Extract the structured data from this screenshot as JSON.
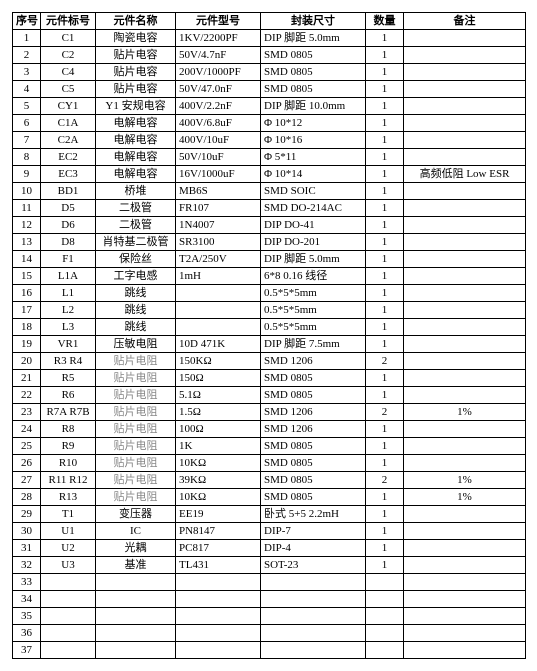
{
  "columns": [
    "序号",
    "元件标号",
    "元件名称",
    "元件型号",
    "封装尺寸",
    "数量",
    "备注"
  ],
  "col_classes": [
    "col-idx",
    "col-ref",
    "col-name",
    "col-model",
    "col-pkg",
    "col-qty",
    "col-note"
  ],
  "name_grey_text": "贴片电阻",
  "rows": [
    {
      "idx": "1",
      "ref": "C1",
      "name": "陶瓷电容",
      "model": "1KV/2200PF",
      "pkg": "DIP 脚距 5.0mm",
      "qty": "1",
      "note": ""
    },
    {
      "idx": "2",
      "ref": "C2",
      "name": "贴片电容",
      "model": "50V/4.7nF",
      "pkg": "SMD 0805",
      "qty": "1",
      "note": ""
    },
    {
      "idx": "3",
      "ref": "C4",
      "name": "贴片电容",
      "model": "200V/1000PF",
      "pkg": "SMD 0805",
      "qty": "1",
      "note": ""
    },
    {
      "idx": "4",
      "ref": "C5",
      "name": "贴片电容",
      "model": "50V/47.0nF",
      "pkg": "SMD 0805",
      "qty": "1",
      "note": ""
    },
    {
      "idx": "5",
      "ref": "CY1",
      "name": "Y1 安规电容",
      "model": "400V/2.2nF",
      "pkg": "DIP 脚距 10.0mm",
      "qty": "1",
      "note": ""
    },
    {
      "idx": "6",
      "ref": "C1A",
      "name": "电解电容",
      "model": "400V/6.8uF",
      "pkg": "Φ 10*12",
      "qty": "1",
      "note": ""
    },
    {
      "idx": "7",
      "ref": "C2A",
      "name": "电解电容",
      "model": "400V/10uF",
      "pkg": "Φ 10*16",
      "qty": "1",
      "note": ""
    },
    {
      "idx": "8",
      "ref": "EC2",
      "name": "电解电容",
      "model": "50V/10uF",
      "pkg": "Φ 5*11",
      "qty": "1",
      "note": ""
    },
    {
      "idx": "9",
      "ref": "EC3",
      "name": "电解电容",
      "model": "16V/1000uF",
      "pkg": "Φ 10*14",
      "qty": "1",
      "note": "高频低阻 Low ESR"
    },
    {
      "idx": "10",
      "ref": "BD1",
      "name": "桥堆",
      "model": "MB6S",
      "pkg": "SMD   SOIC",
      "qty": "1",
      "note": ""
    },
    {
      "idx": "11",
      "ref": "D5",
      "name": "二极管",
      "model": "FR107",
      "pkg": "SMD DO-214AC",
      "qty": "1",
      "note": ""
    },
    {
      "idx": "12",
      "ref": "D6",
      "name": "二极管",
      "model": "1N4007",
      "pkg": "DIP DO-41",
      "qty": "1",
      "note": ""
    },
    {
      "idx": "13",
      "ref": "D8",
      "name": "肖特基二极管",
      "model": "SR3100",
      "pkg": "DIP DO-201",
      "qty": "1",
      "note": ""
    },
    {
      "idx": "14",
      "ref": "F1",
      "name": "保险丝",
      "model": "T2A/250V",
      "pkg": "DIP 脚距 5.0mm",
      "qty": "1",
      "note": ""
    },
    {
      "idx": "15",
      "ref": "L1A",
      "name": "工字电感",
      "model": "1mH",
      "pkg": "6*8   0.16 线径",
      "qty": "1",
      "note": ""
    },
    {
      "idx": "16",
      "ref": "L1",
      "name": "跳线",
      "model": "",
      "pkg": "0.5*5*5mm",
      "qty": "1",
      "note": ""
    },
    {
      "idx": "17",
      "ref": "L2",
      "name": "跳线",
      "model": "",
      "pkg": "0.5*5*5mm",
      "qty": "1",
      "note": ""
    },
    {
      "idx": "18",
      "ref": "L3",
      "name": "跳线",
      "model": "",
      "pkg": "0.5*5*5mm",
      "qty": "1",
      "note": ""
    },
    {
      "idx": "19",
      "ref": "VR1",
      "name": "压敏电阻",
      "model": "10D 471K",
      "pkg": "DIP 脚距 7.5mm",
      "qty": "1",
      "note": ""
    },
    {
      "idx": "20",
      "ref": "R3 R4",
      "name": "贴片电阻",
      "model": "150KΩ",
      "pkg": "SMD 1206",
      "qty": "2",
      "note": ""
    },
    {
      "idx": "21",
      "ref": "R5",
      "name": "贴片电阻",
      "model": "150Ω",
      "pkg": "SMD 0805",
      "qty": "1",
      "note": ""
    },
    {
      "idx": "22",
      "ref": "R6",
      "name": "贴片电阻",
      "model": "5.1Ω",
      "pkg": "SMD 0805",
      "qty": "1",
      "note": ""
    },
    {
      "idx": "23",
      "ref": "R7A R7B",
      "name": "贴片电阻",
      "model": "1.5Ω",
      "pkg": "SMD 1206",
      "qty": "2",
      "note": "1%"
    },
    {
      "idx": "24",
      "ref": "R8",
      "name": "贴片电阻",
      "model": "100Ω",
      "pkg": "SMD 1206",
      "qty": "1",
      "note": ""
    },
    {
      "idx": "25",
      "ref": "R9",
      "name": "贴片电阻",
      "model": "1K",
      "pkg": "SMD 0805",
      "qty": "1",
      "note": ""
    },
    {
      "idx": "26",
      "ref": "R10",
      "name": "贴片电阻",
      "model": "10KΩ",
      "pkg": "SMD 0805",
      "qty": "1",
      "note": ""
    },
    {
      "idx": "27",
      "ref": "R11 R12",
      "name": "贴片电阻",
      "model": "39KΩ",
      "pkg": "SMD 0805",
      "qty": "2",
      "note": "1%"
    },
    {
      "idx": "28",
      "ref": "R13",
      "name": "贴片电阻",
      "model": "10KΩ",
      "pkg": "SMD 0805",
      "qty": "1",
      "note": "1%"
    },
    {
      "idx": "29",
      "ref": "T1",
      "name": "变压器",
      "model": "EE19",
      "pkg": "卧式  5+5 2.2mH",
      "qty": "1",
      "note": ""
    },
    {
      "idx": "30",
      "ref": "U1",
      "name": "IC",
      "model": "PN8147",
      "pkg": "DIP-7",
      "qty": "1",
      "note": ""
    },
    {
      "idx": "31",
      "ref": "U2",
      "name": "光耦",
      "model": "PC817",
      "pkg": "DIP-4",
      "qty": "1",
      "note": ""
    },
    {
      "idx": "32",
      "ref": "U3",
      "name": "基准",
      "model": "TL431",
      "pkg": "SOT-23",
      "qty": "1",
      "note": ""
    },
    {
      "idx": "33",
      "ref": "",
      "name": "",
      "model": "",
      "pkg": "",
      "qty": "",
      "note": ""
    },
    {
      "idx": "34",
      "ref": "",
      "name": "",
      "model": "",
      "pkg": "",
      "qty": "",
      "note": ""
    },
    {
      "idx": "35",
      "ref": "",
      "name": "",
      "model": "",
      "pkg": "",
      "qty": "",
      "note": ""
    },
    {
      "idx": "36",
      "ref": "",
      "name": "",
      "model": "",
      "pkg": "",
      "qty": "",
      "note": ""
    },
    {
      "idx": "37",
      "ref": "",
      "name": "",
      "model": "",
      "pkg": "",
      "qty": "",
      "note": ""
    }
  ]
}
